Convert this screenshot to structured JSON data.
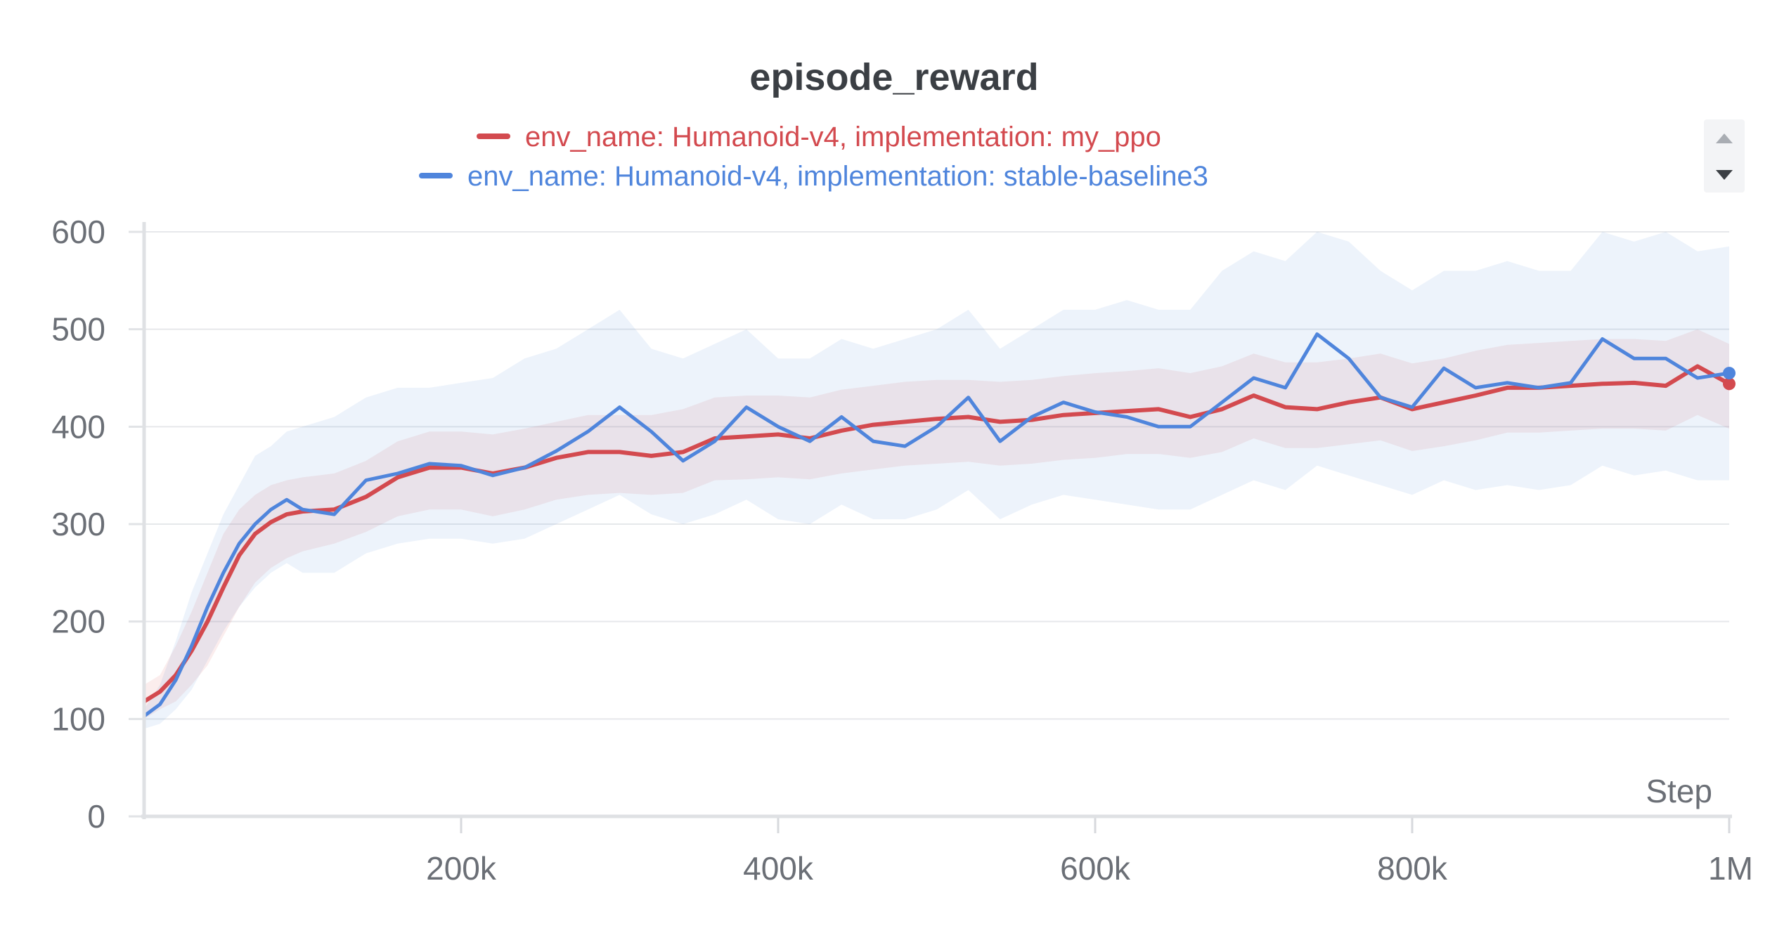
{
  "chart_data": {
    "type": "line",
    "title": "episode_reward",
    "xlabel": "Step",
    "ylabel": "",
    "xlim": [
      0,
      1000000
    ],
    "ylim": [
      0,
      600
    ],
    "x_ticks": [
      200000,
      400000,
      600000,
      800000,
      1000000
    ],
    "x_tick_labels": [
      "200k",
      "400k",
      "600k",
      "800k",
      "1M"
    ],
    "y_ticks": [
      0,
      100,
      200,
      300,
      400,
      500,
      600
    ],
    "y_tick_labels": [
      "0",
      "100",
      "200",
      "300",
      "400",
      "500",
      "600"
    ],
    "grid": true,
    "legend_position": "top-center",
    "series": [
      {
        "name": "env_name: Humanoid-v4, implementation: my_ppo",
        "color": "#d34a4f",
        "x": [
          0,
          10000,
          20000,
          30000,
          40000,
          50000,
          60000,
          70000,
          80000,
          90000,
          100000,
          120000,
          140000,
          160000,
          180000,
          200000,
          220000,
          240000,
          260000,
          280000,
          300000,
          320000,
          340000,
          360000,
          380000,
          400000,
          420000,
          440000,
          460000,
          480000,
          500000,
          520000,
          540000,
          560000,
          580000,
          600000,
          620000,
          640000,
          660000,
          680000,
          700000,
          720000,
          740000,
          760000,
          780000,
          800000,
          820000,
          840000,
          860000,
          880000,
          900000,
          920000,
          940000,
          960000,
          980000,
          1000000
        ],
        "values": [
          118,
          128,
          145,
          170,
          200,
          235,
          268,
          290,
          302,
          310,
          313,
          315,
          328,
          348,
          358,
          358,
          352,
          358,
          368,
          374,
          374,
          370,
          374,
          388,
          390,
          392,
          388,
          396,
          402,
          405,
          408,
          410,
          405,
          407,
          412,
          414,
          416,
          418,
          410,
          418,
          432,
          420,
          418,
          425,
          430,
          418,
          425,
          432,
          440,
          440,
          442,
          444,
          445,
          442,
          462,
          444
        ],
        "band_upper": [
          135,
          145,
          175,
          210,
          250,
          290,
          315,
          330,
          340,
          345,
          348,
          352,
          365,
          385,
          395,
          395,
          392,
          398,
          405,
          412,
          412,
          412,
          418,
          430,
          432,
          432,
          430,
          438,
          442,
          446,
          448,
          448,
          446,
          448,
          452,
          455,
          457,
          460,
          455,
          462,
          475,
          466,
          466,
          470,
          475,
          465,
          470,
          478,
          484,
          486,
          488,
          490,
          490,
          488,
          500,
          485
        ],
        "band_lower": [
          100,
          110,
          118,
          135,
          155,
          185,
          215,
          240,
          255,
          265,
          272,
          280,
          292,
          308,
          315,
          315,
          308,
          315,
          325,
          330,
          332,
          330,
          332,
          345,
          346,
          348,
          346,
          352,
          356,
          360,
          362,
          364,
          360,
          362,
          366,
          368,
          372,
          372,
          368,
          374,
          388,
          378,
          378,
          382,
          386,
          375,
          380,
          386,
          394,
          394,
          396,
          398,
          398,
          396,
          412,
          398
        ]
      },
      {
        "name": "env_name: Humanoid-v4, implementation: stable-baseline3",
        "color": "#4f85dc",
        "x": [
          0,
          10000,
          20000,
          30000,
          40000,
          50000,
          60000,
          70000,
          80000,
          90000,
          100000,
          120000,
          140000,
          160000,
          180000,
          200000,
          220000,
          240000,
          260000,
          280000,
          300000,
          320000,
          340000,
          360000,
          380000,
          400000,
          420000,
          440000,
          460000,
          480000,
          500000,
          520000,
          540000,
          560000,
          580000,
          600000,
          620000,
          640000,
          660000,
          680000,
          700000,
          720000,
          740000,
          760000,
          780000,
          800000,
          820000,
          840000,
          860000,
          880000,
          900000,
          920000,
          940000,
          960000,
          980000,
          1000000
        ],
        "values": [
          103,
          115,
          140,
          175,
          215,
          250,
          280,
          300,
          315,
          325,
          315,
          310,
          345,
          352,
          362,
          360,
          350,
          358,
          375,
          395,
          420,
          395,
          365,
          385,
          420,
          400,
          385,
          410,
          385,
          380,
          400,
          430,
          385,
          410,
          425,
          415,
          410,
          400,
          400,
          425,
          450,
          440,
          495,
          470,
          430,
          420,
          460,
          440,
          445,
          440,
          445,
          490,
          470,
          470,
          450,
          455
        ],
        "band_upper": [
          110,
          135,
          180,
          230,
          270,
          310,
          340,
          370,
          380,
          395,
          400,
          410,
          430,
          440,
          440,
          445,
          450,
          470,
          480,
          500,
          520,
          480,
          470,
          485,
          500,
          470,
          470,
          490,
          480,
          490,
          500,
          520,
          480,
          500,
          520,
          520,
          530,
          520,
          520,
          560,
          580,
          570,
          600,
          590,
          560,
          540,
          560,
          560,
          570,
          560,
          560,
          600,
          590,
          600,
          580,
          585
        ],
        "band_lower": [
          90,
          95,
          110,
          130,
          160,
          190,
          215,
          235,
          250,
          260,
          250,
          250,
          270,
          280,
          285,
          285,
          280,
          285,
          300,
          315,
          330,
          310,
          300,
          310,
          325,
          305,
          300,
          320,
          305,
          305,
          315,
          335,
          305,
          320,
          330,
          325,
          320,
          315,
          315,
          330,
          345,
          335,
          360,
          350,
          340,
          330,
          345,
          335,
          340,
          335,
          340,
          360,
          350,
          355,
          345,
          345
        ]
      }
    ]
  },
  "ui": {
    "scroll_up_icon": "triangle-up",
    "scroll_down_icon": "triangle-down"
  }
}
